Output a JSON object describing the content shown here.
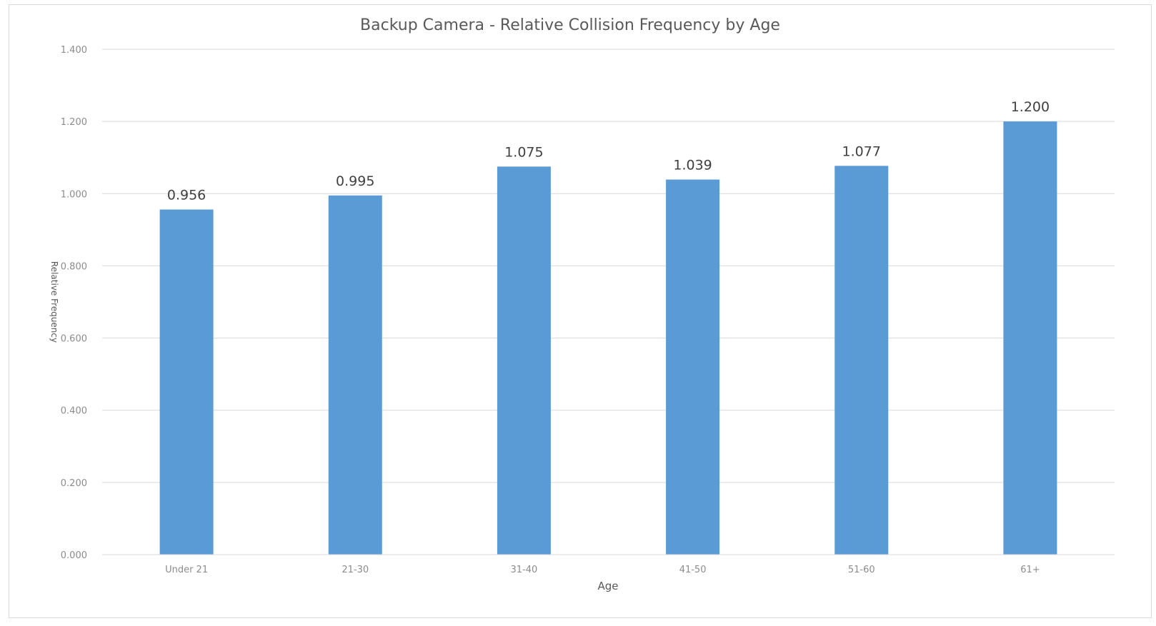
{
  "chart_data": {
    "type": "bar",
    "title": "Backup Camera - Relative Collision Frequency by Age",
    "xlabel": "Age",
    "ylabel": "Relative Frequency",
    "categories": [
      "Under 21",
      "21-30",
      "31-40",
      "41-50",
      "51-60",
      "61+"
    ],
    "values": [
      0.956,
      0.995,
      1.075,
      1.039,
      1.077,
      1.2
    ],
    "data_labels": [
      "0.956",
      "0.995",
      "1.075",
      "1.039",
      "1.077",
      "1.200"
    ],
    "y_ticks": [
      "0.000",
      "0.200",
      "0.400",
      "0.600",
      "0.800",
      "1.000",
      "1.200",
      "1.400"
    ],
    "ylim": [
      0,
      1.4
    ],
    "grid": true,
    "legend": "none",
    "bar_color": "#5b9bd5"
  }
}
